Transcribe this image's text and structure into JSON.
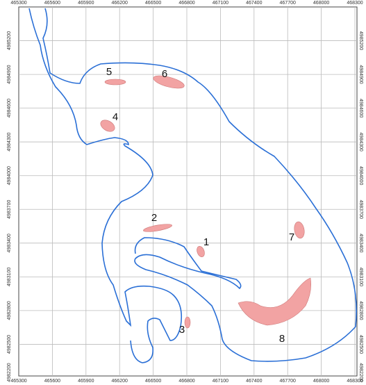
{
  "map": {
    "xlim": [
      465300,
      468300
    ],
    "ylim": [
      4982200,
      4985500
    ],
    "xticks": [
      465300,
      465600,
      465900,
      466200,
      466500,
      466800,
      467100,
      467400,
      467700,
      468000,
      468300
    ],
    "yticks": [
      4982200,
      4982500,
      4982800,
      4983100,
      4983400,
      4983700,
      4984000,
      4984300,
      4984600,
      4984900,
      4985200
    ],
    "zones": [
      "1",
      "2",
      "3",
      "4",
      "5",
      "6",
      "7",
      "8"
    ]
  }
}
